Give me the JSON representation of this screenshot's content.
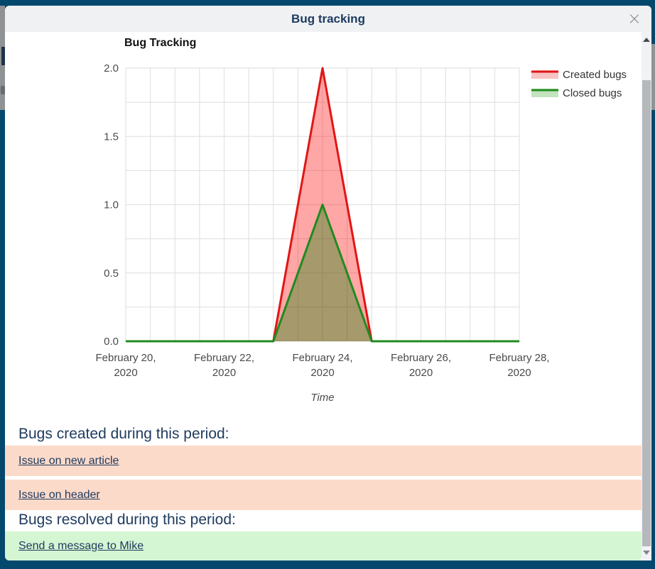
{
  "backdrop": {
    "color": "#05486d",
    "page_fragments": [
      "u",
      "a"
    ]
  },
  "modal": {
    "title": "Bug tracking"
  },
  "icons": {
    "close": "×",
    "scrollbar_up": "up-triangle",
    "scrollbar_down": "down-triangle"
  },
  "colors": {
    "header_bg": "#eff1f3",
    "title_text": "#1c3a5e",
    "link_text": "#1e3a5e",
    "created_row_bg": "#fcdaca",
    "resolved_row_bg": "#d5f6d3"
  },
  "chart_data": {
    "type": "area",
    "title": "Bug Tracking",
    "xlabel": "Time",
    "ylim": [
      0,
      2
    ],
    "x_days": [
      "2020-02-20",
      "2020-02-21",
      "2020-02-22",
      "2020-02-23",
      "2020-02-24",
      "2020-02-25",
      "2020-02-26",
      "2020-02-27",
      "2020-02-28"
    ],
    "x_tick_labels": [
      "February 20, 2020",
      "February 22, 2020",
      "February 24, 2020",
      "February 26, 2020",
      "February 28, 2020"
    ],
    "y_ticks": [
      "2.0",
      "1.5",
      "1.0",
      "0.5",
      "0.0"
    ],
    "grid": {
      "v_divisions": 16,
      "h_divisions": 8,
      "on": true
    },
    "legend_position": "top-right",
    "series": [
      {
        "name": "Created bugs",
        "line_color": "#e01616",
        "fill_color": "rgba(255,0,0,0.35)",
        "legend_fill": "#f7c3c3",
        "values": [
          0,
          0,
          0,
          0,
          2,
          0,
          0,
          0,
          0
        ]
      },
      {
        "name": "Closed bugs",
        "line_color": "#1f8b1f",
        "fill_color": "rgba(0,128,0,0.35)",
        "legend_fill": "#c4e3bf",
        "values": [
          0,
          0,
          0,
          0,
          1,
          0,
          0,
          0,
          0
        ]
      }
    ]
  },
  "sections": {
    "created": {
      "heading": "Bugs created during this period:",
      "items": [
        {
          "label": "Issue on new article"
        },
        {
          "label": "Issue on header"
        }
      ]
    },
    "resolved": {
      "heading": "Bugs resolved during this period:",
      "items": [
        {
          "label": "Send a message to Mike"
        }
      ]
    }
  }
}
